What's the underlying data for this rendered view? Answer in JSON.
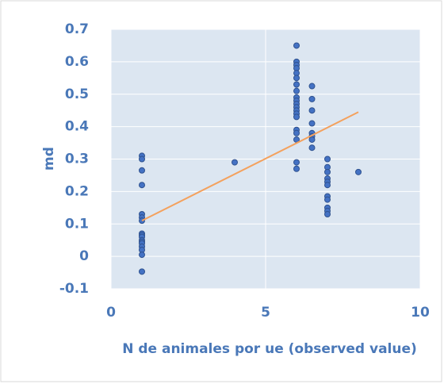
{
  "chart_data": {
    "type": "scatter",
    "xlabel": "N de animales por ue (observed value)",
    "ylabel": "md",
    "xlim": [
      0,
      10
    ],
    "xticks": [
      0,
      5,
      10
    ],
    "ylim": [
      -0.1,
      0.7
    ],
    "yticks": [
      -0.1,
      0,
      0.1,
      0.2,
      0.3,
      0.4,
      0.5,
      0.6,
      0.7
    ],
    "grid": true,
    "color": "#4472c4",
    "x": [
      1,
      1,
      1,
      1,
      1,
      1,
      1,
      1,
      1,
      1,
      1,
      1,
      1,
      1,
      1,
      1,
      1,
      4,
      6,
      6,
      6,
      6,
      6,
      6,
      6,
      6,
      6,
      6,
      6,
      6,
      6,
      6,
      6,
      6,
      6,
      6,
      6,
      6,
      6.5,
      6.5,
      6.5,
      6.5,
      6.5,
      6.5,
      6.5,
      6.5,
      7,
      7,
      7,
      7,
      7,
      7,
      7,
      7,
      7,
      7,
      7,
      8
    ],
    "y": [
      0.31,
      0.3,
      0.265,
      0.22,
      0.13,
      0.12,
      0.11,
      0.07,
      0.065,
      0.06,
      0.05,
      0.045,
      0.04,
      0.03,
      0.02,
      0.005,
      -0.047,
      0.29,
      0.65,
      0.6,
      0.59,
      0.58,
      0.565,
      0.55,
      0.53,
      0.51,
      0.49,
      0.48,
      0.47,
      0.46,
      0.45,
      0.44,
      0.43,
      0.39,
      0.38,
      0.36,
      0.29,
      0.27,
      0.525,
      0.485,
      0.45,
      0.41,
      0.38,
      0.37,
      0.36,
      0.335,
      0.3,
      0.275,
      0.26,
      0.24,
      0.23,
      0.22,
      0.185,
      0.175,
      0.15,
      0.14,
      0.13,
      0.26
    ],
    "trendline": {
      "x": [
        1,
        8
      ],
      "y": [
        0.11,
        0.445
      ],
      "color": "#f4a15d"
    }
  }
}
